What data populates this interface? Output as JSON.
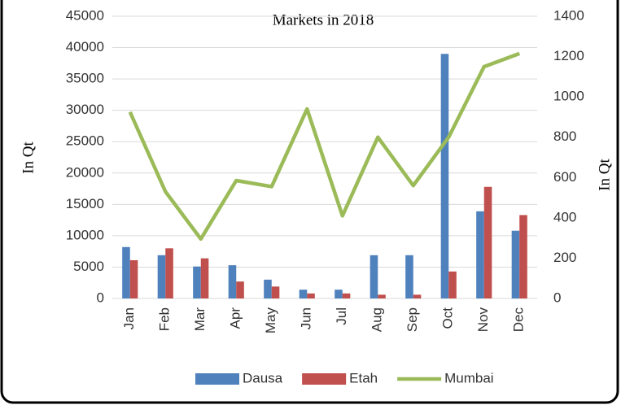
{
  "chart_data": {
    "type": "bar",
    "title": "Markets in 2018",
    "y_label": "In Qt",
    "y2_label": "In Qt",
    "categories": [
      "Jan",
      "Feb",
      "Mar",
      "Apr",
      "May",
      "Jun",
      "Jul",
      "Aug",
      "Sep",
      "Oct",
      "Nov",
      "Dec"
    ],
    "series": [
      {
        "name": "Dausa",
        "type": "bar",
        "color": "#4f81bd",
        "values": [
          8200,
          6900,
          5100,
          5300,
          3000,
          1400,
          1400,
          6900,
          6900,
          39000,
          13900,
          10800
        ]
      },
      {
        "name": "Etah",
        "type": "bar",
        "color": "#c0504d",
        "values": [
          6100,
          8000,
          6400,
          2700,
          1900,
          800,
          800,
          600,
          600,
          4300,
          17800,
          13300
        ]
      },
      {
        "name": "Mumbai",
        "type": "line",
        "axis": "y2",
        "color": "#9bbb59",
        "values": [
          925,
          530,
          295,
          585,
          555,
          940,
          410,
          800,
          560,
          800,
          1150,
          1215
        ]
      }
    ],
    "ylim": [
      0,
      45000
    ],
    "yticks": [
      0,
      5000,
      10000,
      15000,
      20000,
      25000,
      30000,
      35000,
      40000,
      45000
    ],
    "y2lim": [
      0,
      1400
    ],
    "y2ticks": [
      0,
      200,
      400,
      600,
      800,
      1000,
      1200,
      1400
    ],
    "grid": true,
    "legend": "bottom"
  }
}
